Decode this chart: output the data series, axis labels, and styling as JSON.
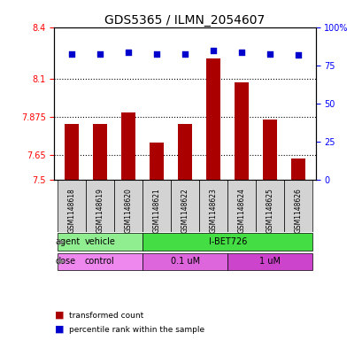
{
  "title": "GDS5365 / ILMN_2054607",
  "samples": [
    "GSM1148618",
    "GSM1148619",
    "GSM1148620",
    "GSM1148621",
    "GSM1148622",
    "GSM1148623",
    "GSM1148624",
    "GSM1148625",
    "GSM1148626"
  ],
  "bar_values": [
    7.83,
    7.83,
    7.9,
    7.72,
    7.83,
    8.22,
    8.08,
    7.86,
    7.63
  ],
  "percentile_values": [
    83,
    83,
    84,
    83,
    83,
    85,
    84,
    83,
    82
  ],
  "ylim_left": [
    7.5,
    8.4
  ],
  "ylim_right": [
    0,
    100
  ],
  "yticks_left": [
    7.5,
    7.65,
    7.875,
    8.1,
    8.4
  ],
  "yticks_right": [
    0,
    25,
    50,
    75,
    100
  ],
  "ytick_labels_left": [
    "7.5",
    "7.65",
    "7.875",
    "8.1",
    "8.4"
  ],
  "ytick_labels_right": [
    "0",
    "25",
    "50",
    "75",
    "100%"
  ],
  "hlines": [
    8.1,
    7.875,
    7.65
  ],
  "bar_color": "#aa0000",
  "percentile_color": "#0000cc",
  "agent_groups": [
    {
      "label": "vehicle",
      "start": 0,
      "end": 3,
      "color": "#90ee90"
    },
    {
      "label": "I-BET726",
      "start": 3,
      "end": 9,
      "color": "#44dd44"
    }
  ],
  "dose_groups": [
    {
      "label": "control",
      "start": 0,
      "end": 3,
      "color": "#ee88ee"
    },
    {
      "label": "0.1 uM",
      "start": 3,
      "end": 6,
      "color": "#dd66dd"
    },
    {
      "label": "1 uM",
      "start": 6,
      "end": 9,
      "color": "#cc44cc"
    }
  ],
  "legend_items": [
    {
      "label": "transformed count",
      "color": "#aa0000",
      "marker": "s"
    },
    {
      "label": "percentile rank within the sample",
      "color": "#0000cc",
      "marker": "s"
    }
  ]
}
